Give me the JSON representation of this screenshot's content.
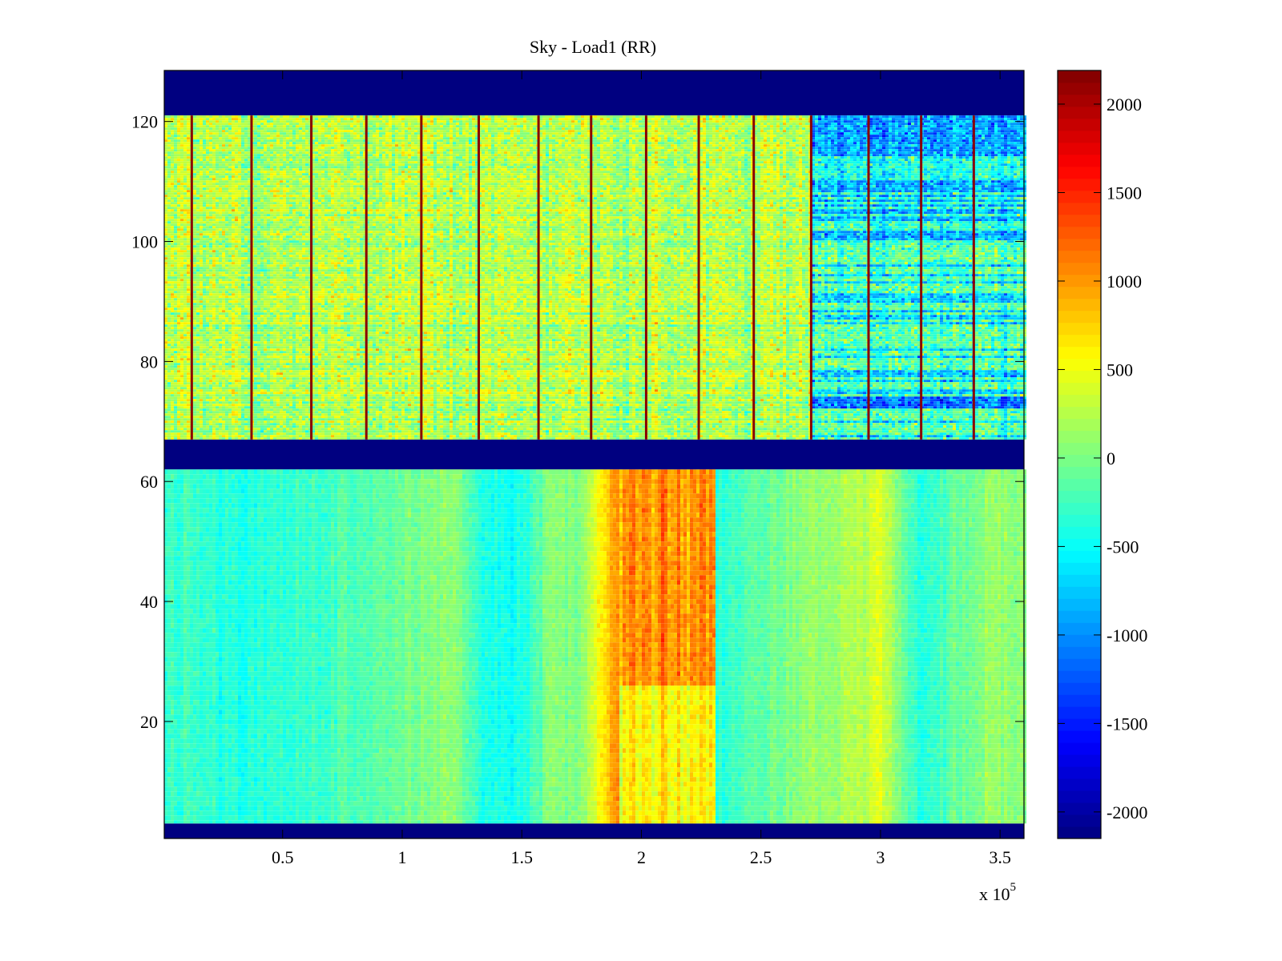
{
  "chart_data": {
    "type": "heatmap",
    "title": "Sky - Load1 (RR)",
    "xlabel": "",
    "ylabel": "",
    "x_multiplier_label": "x 10",
    "x_multiplier_exponent": "5",
    "xlim": [
      0.005,
      3.6
    ],
    "ylim": [
      0.5,
      128.5
    ],
    "x_ticks": [
      0.5,
      1,
      1.5,
      2,
      2.5,
      3,
      3.5
    ],
    "x_tick_labels": [
      "0.5",
      "1",
      "1.5",
      "2",
      "2.5",
      "3",
      "3.5"
    ],
    "y_ticks": [
      20,
      40,
      60,
      80,
      100,
      120
    ],
    "y_tick_labels": [
      "20",
      "40",
      "60",
      "80",
      "100",
      "120"
    ],
    "colormap": "jet",
    "clim": [
      -2150,
      2190
    ],
    "colorbar_ticks": [
      2000,
      1500,
      1000,
      500,
      0,
      -500,
      -1000,
      -1500,
      -2000
    ],
    "colorbar_tick_labels": [
      "2000",
      "1500",
      "1000",
      "500",
      "0",
      "-500",
      "-1000",
      "-1500",
      "-2000"
    ],
    "colorbar_position": "right",
    "grid": false,
    "empty_row_bands": [
      {
        "rows": [
          121,
          128.5
        ],
        "value": -2150
      },
      {
        "rows": [
          62,
          67
        ],
        "value": -2150
      },
      {
        "rows": [
          0.5,
          3
        ],
        "value": -2150
      }
    ],
    "regions": [
      {
        "name": "upper-band",
        "rows": [
          67,
          121
        ],
        "base_value": 250,
        "noise": 450,
        "spike_value": 2150,
        "spike_x": [
          0.12,
          0.37,
          0.62,
          0.85,
          1.08,
          1.32,
          1.57,
          1.79,
          2.02,
          2.24,
          2.47,
          2.71,
          2.95,
          3.17,
          3.39
        ],
        "cold_region": {
          "x": [
            2.7,
            3.6
          ],
          "value": -700
        }
      },
      {
        "name": "lower-band",
        "rows": [
          3,
          62
        ],
        "column_profile_x": [
          0.0,
          0.2,
          0.35,
          0.5,
          0.65,
          0.85,
          1.0,
          1.2,
          1.35,
          1.5,
          1.6,
          1.75,
          1.9,
          2.3,
          2.46,
          2.6,
          2.8,
          3.0,
          3.16,
          3.3,
          3.45,
          3.6
        ],
        "column_profile_value": [
          -250,
          -350,
          -400,
          -300,
          -300,
          -150,
          -50,
          100,
          -450,
          -400,
          0,
          100,
          1100,
          -400,
          -150,
          0,
          150,
          400,
          -400,
          -150,
          150,
          50
        ],
        "hot_block": {
          "x": [
            1.9,
            2.3
          ],
          "rows_hot": [
            26,
            62
          ],
          "value_hot": 1050,
          "value_warm": 600
        }
      }
    ]
  }
}
